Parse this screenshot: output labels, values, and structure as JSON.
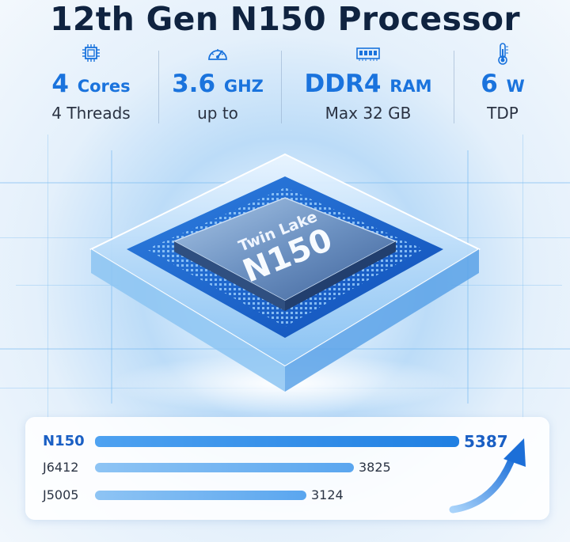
{
  "title": "12th Gen N150 Processor",
  "specs": [
    {
      "icon": "cpu-icon",
      "value": "4",
      "unit": "Cores",
      "sub": "4 Threads"
    },
    {
      "icon": "speedometer-icon",
      "value": "3.6",
      "unit": "GHZ",
      "sub": "up to"
    },
    {
      "icon": "ram-module-icon",
      "value": "DDR4",
      "unit": "RAM",
      "sub": "Max 32 GB"
    },
    {
      "icon": "thermometer-icon",
      "value": "6",
      "unit": "W",
      "sub": "TDP"
    }
  ],
  "chip": {
    "line1": "Twin Lake",
    "line2": "N150"
  },
  "benchmark": {
    "max": 5387,
    "items": [
      {
        "name": "N150",
        "score": 5387,
        "highlight": true
      },
      {
        "name": "J6412",
        "score": 3825,
        "highlight": false
      },
      {
        "name": "J5005",
        "score": 3124,
        "highlight": false
      }
    ]
  },
  "colors": {
    "accent": "#1a73dd",
    "title": "#0f2340"
  }
}
